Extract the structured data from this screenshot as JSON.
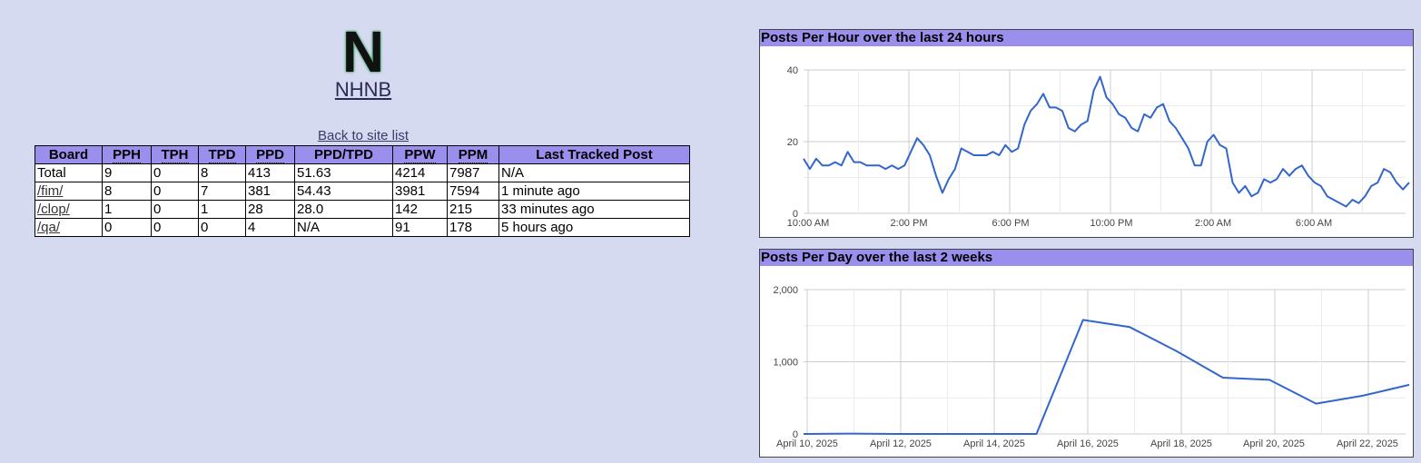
{
  "header": {
    "logo_letter": "N",
    "site_name": "NHNB",
    "back_link": "Back to site list"
  },
  "table": {
    "headers": [
      "Board",
      "PPH",
      "TPH",
      "TPD",
      "PPD",
      "PPD/TPD",
      "PPW",
      "PPM",
      "Last Tracked Post"
    ],
    "rows": [
      [
        "Total",
        "9",
        "0",
        "8",
        "413",
        "51.63",
        "4214",
        "7987",
        "N/A"
      ],
      [
        "/fim/",
        "8",
        "0",
        "7",
        "381",
        "54.43",
        "3981",
        "7594",
        "1 minute ago"
      ],
      [
        "/clop/",
        "1",
        "0",
        "1",
        "28",
        "28.0",
        "142",
        "215",
        "33 minutes ago"
      ],
      [
        "/qa/",
        "0",
        "0",
        "0",
        "4",
        "N/A",
        "91",
        "178",
        "5 hours ago"
      ]
    ]
  },
  "colors": {
    "header_bg": "#9b8fee",
    "page_bg": "#d5daf0",
    "line": "#3366cc"
  },
  "chart_data": [
    {
      "type": "line",
      "title": "Posts Per Hour over the last 24 hours",
      "x_tick_labels": [
        "10:00 AM",
        "2:00 PM",
        "6:00 PM",
        "10:00 PM",
        "2:00 AM",
        "6:00 AM"
      ],
      "y_tick_labels": [
        "0",
        "20",
        "40"
      ],
      "ylim": [
        0,
        42
      ],
      "values": [
        16,
        13,
        16,
        14,
        14,
        15,
        14,
        18,
        15,
        15,
        14,
        14,
        14,
        13,
        14,
        13,
        14,
        18,
        22,
        20,
        17,
        11,
        6,
        10,
        13,
        19,
        18,
        17,
        17,
        17,
        18,
        17,
        20,
        18,
        19,
        26,
        30,
        32,
        35,
        31,
        31,
        30,
        25,
        24,
        26,
        27,
        36,
        40,
        34,
        32,
        29,
        28,
        25,
        24,
        29,
        28,
        31,
        32,
        27,
        25,
        22,
        19,
        14,
        14,
        21,
        23,
        20,
        19,
        9,
        6,
        8,
        5,
        6,
        10,
        9,
        10,
        13,
        11,
        13,
        14,
        11,
        9,
        8,
        5,
        4,
        3,
        2,
        4,
        3,
        5,
        8,
        9,
        13,
        12,
        9,
        7,
        9
      ]
    },
    {
      "type": "line",
      "title": "Posts Per Day over the last 2 weeks",
      "x_tick_labels": [
        "April 10, 2025",
        "April 12, 2025",
        "April 14, 2025",
        "April 16, 2025",
        "April 18, 2025",
        "April 20, 2025",
        "April 22, 2025"
      ],
      "y_tick_labels": [
        "0",
        "1,000",
        "2,000"
      ],
      "ylim": [
        0,
        2000
      ],
      "x": [
        "2025-04-10",
        "2025-04-11",
        "2025-04-12",
        "2025-04-13",
        "2025-04-14",
        "2025-04-15",
        "2025-04-16",
        "2025-04-17",
        "2025-04-18",
        "2025-04-19",
        "2025-04-20",
        "2025-04-21",
        "2025-04-22",
        "2025-04-23"
      ],
      "values": [
        0,
        5,
        0,
        0,
        0,
        0,
        1580,
        1480,
        1150,
        780,
        750,
        420,
        530,
        680
      ]
    }
  ]
}
